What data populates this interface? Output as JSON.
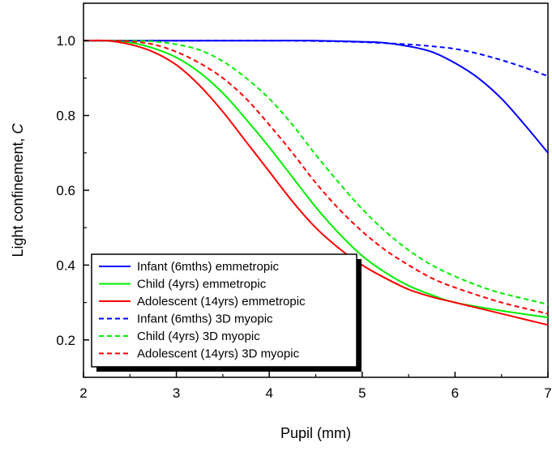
{
  "chart_data": {
    "type": "line",
    "xlabel": "Pupil (mm)",
    "ylabel": {
      "main": "Light confinement, ",
      "italic": "C"
    },
    "xlim": [
      2,
      7
    ],
    "ylim": [
      0.1,
      1.1
    ],
    "xticks": [
      "2",
      "3",
      "4",
      "5",
      "6",
      "7"
    ],
    "yticks": [
      "0.2",
      "0.4",
      "0.6",
      "0.8",
      "1.0"
    ],
    "grid": false,
    "legend_position": "bottom-left",
    "series": [
      {
        "name": "Infant (6mths) emmetropic",
        "color": "#0000ff",
        "dash": "solid",
        "x": [
          2.0,
          2.5,
          3.0,
          3.5,
          4.0,
          4.5,
          5.0,
          5.25,
          5.5,
          5.75,
          6.0,
          6.25,
          6.5,
          6.75,
          7.0
        ],
        "y": [
          1.0,
          1.0,
          1.0,
          1.0,
          1.0,
          1.0,
          0.997,
          0.994,
          0.985,
          0.97,
          0.94,
          0.9,
          0.845,
          0.775,
          0.7
        ]
      },
      {
        "name": "Child (4yrs) emmetropic",
        "color": "#00ee00",
        "dash": "solid",
        "x": [
          2.0,
          2.25,
          2.5,
          2.75,
          3.0,
          3.25,
          3.5,
          3.75,
          4.0,
          4.25,
          4.5,
          4.75,
          5.0,
          5.25,
          5.5,
          5.75,
          6.0,
          6.5,
          7.0
        ],
        "y": [
          1.0,
          1.0,
          0.995,
          0.98,
          0.955,
          0.915,
          0.86,
          0.79,
          0.715,
          0.635,
          0.555,
          0.485,
          0.425,
          0.38,
          0.345,
          0.32,
          0.3,
          0.278,
          0.26
        ]
      },
      {
        "name": "Adolescent (14yrs) emmetropic",
        "color": "#ff0000",
        "dash": "solid",
        "x": [
          2.0,
          2.25,
          2.5,
          2.75,
          3.0,
          3.25,
          3.5,
          3.75,
          4.0,
          4.25,
          4.5,
          4.75,
          5.0,
          5.25,
          5.5,
          5.75,
          6.0,
          6.5,
          7.0
        ],
        "y": [
          1.0,
          1.0,
          0.99,
          0.97,
          0.935,
          0.88,
          0.81,
          0.73,
          0.65,
          0.57,
          0.5,
          0.445,
          0.4,
          0.365,
          0.335,
          0.315,
          0.3,
          0.27,
          0.24
        ]
      },
      {
        "name": "Infant (6mths) 3D myopic",
        "color": "#0000ff",
        "dash": "dashed",
        "x": [
          2.0,
          3.0,
          4.0,
          4.5,
          5.0,
          5.5,
          5.75,
          6.0,
          6.25,
          6.5,
          6.75,
          7.0
        ],
        "y": [
          1.0,
          1.0,
          1.0,
          0.999,
          0.996,
          0.99,
          0.985,
          0.978,
          0.965,
          0.948,
          0.928,
          0.905
        ]
      },
      {
        "name": "Child (4yrs) 3D myopic",
        "color": "#00ee00",
        "dash": "dashed",
        "x": [
          2.0,
          2.5,
          2.75,
          3.0,
          3.25,
          3.5,
          3.75,
          4.0,
          4.25,
          4.5,
          4.75,
          5.0,
          5.25,
          5.5,
          5.75,
          6.0,
          6.25,
          6.5,
          7.0
        ],
        "y": [
          1.0,
          1.0,
          0.998,
          0.99,
          0.975,
          0.945,
          0.9,
          0.845,
          0.775,
          0.695,
          0.62,
          0.55,
          0.49,
          0.44,
          0.4,
          0.37,
          0.345,
          0.325,
          0.295
        ]
      },
      {
        "name": "Adolescent (14yrs) 3D myopic",
        "color": "#ff0000",
        "dash": "dashed",
        "x": [
          2.0,
          2.25,
          2.5,
          2.75,
          3.0,
          3.25,
          3.5,
          3.75,
          4.0,
          4.25,
          4.5,
          4.75,
          5.0,
          5.25,
          5.5,
          5.75,
          6.0,
          6.5,
          7.0
        ],
        "y": [
          1.0,
          1.0,
          0.998,
          0.99,
          0.97,
          0.94,
          0.9,
          0.845,
          0.775,
          0.7,
          0.62,
          0.55,
          0.49,
          0.44,
          0.4,
          0.365,
          0.34,
          0.3,
          0.27
        ]
      }
    ]
  }
}
